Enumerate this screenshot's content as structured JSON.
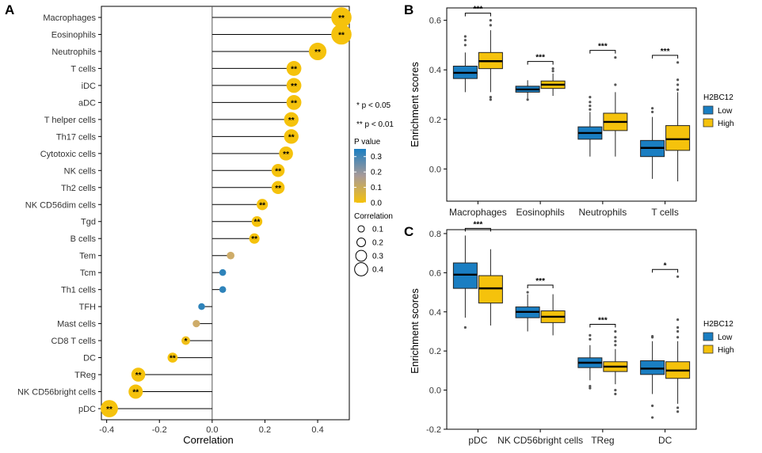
{
  "panels": {
    "a": "A",
    "b": "B",
    "c": "C"
  },
  "chart_data": [
    {
      "panel": "A",
      "type": "lollipop",
      "xlabel": "Correlation",
      "xlim": [
        -0.42,
        0.52
      ],
      "xticks": [
        "-0.4",
        "-0.2",
        "0.0",
        "0.2",
        "0.4"
      ],
      "xtick_values": [
        -0.4,
        -0.2,
        0.0,
        0.2,
        0.4
      ],
      "colors": {
        "low_p": "#F5C20C",
        "mid_p": "#C8A878",
        "high_p": "#1A7EC2"
      },
      "categories": [
        "Macrophages",
        "Eosinophils",
        "Neutrophils",
        "T cells",
        "iDC",
        "aDC",
        "T helper cells",
        "Th17 cells",
        "Cytotoxic cells",
        "NK cells",
        "Th2 cells",
        "NK CD56dim cells",
        "Tgd",
        "B cells",
        "Tem",
        "Tcm",
        "Th1 cells",
        "TFH",
        "Mast cells",
        "CD8 T cells",
        "DC",
        "TReg",
        "NK CD56bright cells",
        "pDC"
      ],
      "values": [
        0.49,
        0.49,
        0.4,
        0.31,
        0.31,
        0.31,
        0.3,
        0.3,
        0.28,
        0.25,
        0.25,
        0.19,
        0.17,
        0.16,
        0.07,
        0.04,
        0.04,
        -0.04,
        -0.06,
        -0.1,
        -0.15,
        -0.28,
        -0.29,
        -0.39
      ],
      "pvalues": [
        0.0,
        0.0,
        0.0,
        0.0,
        0.0,
        0.0,
        0.0,
        0.0,
        0.0,
        0.0,
        0.0,
        0.0,
        0.0,
        0.0,
        0.15,
        0.33,
        0.33,
        0.33,
        0.15,
        0.02,
        0.0,
        0.0,
        0.0,
        0.0
      ],
      "significance": [
        "**",
        "**",
        "**",
        "**",
        "**",
        "**",
        "**",
        "**",
        "**",
        "**",
        "**",
        "**",
        "**",
        "**",
        "",
        "",
        "",
        "",
        "",
        "*",
        "**",
        "**",
        "**",
        "**"
      ],
      "legend": {
        "sig_notes": [
          "* p < 0.05",
          "** p < 0.01"
        ],
        "pvalue_title": "P value",
        "pvalue_ticks": [
          "0.3",
          "0.2",
          "0.1",
          "0.0"
        ],
        "pvalue_tick_values": [
          0.3,
          0.2,
          0.1,
          0.0
        ],
        "pvalue_range": [
          0.0,
          0.35
        ],
        "correlation_title": "Correlation",
        "correlation_ticks": [
          "0.1",
          "0.2",
          "0.3",
          "0.4"
        ],
        "correlation_tick_values": [
          0.1,
          0.2,
          0.3,
          0.4
        ]
      }
    },
    {
      "panel": "B",
      "type": "boxplot",
      "ylabel": "Enrichment scores",
      "ylim": [
        -0.13,
        0.65
      ],
      "yticks": [
        "0.0",
        "0.2",
        "0.4",
        "0.6"
      ],
      "ytick_values": [
        0.0,
        0.2,
        0.4,
        0.6
      ],
      "categories": [
        "Macrophages",
        "Eosinophils",
        "Neutrophils",
        "T cells"
      ],
      "significance": [
        "***",
        "***",
        "***",
        "***"
      ],
      "legend_title": "H2BC12",
      "series": [
        {
          "name": "Low",
          "color": "#1A7EC2",
          "boxes": [
            {
              "whislo": 0.31,
              "q1": 0.365,
              "med": 0.388,
              "q3": 0.415,
              "whishi": 0.47,
              "outliers": [
                0.5,
                0.52,
                0.535
              ]
            },
            {
              "whislo": 0.285,
              "q1": 0.31,
              "med": 0.321,
              "q3": 0.334,
              "whishi": 0.358,
              "outliers": [
                0.28
              ]
            },
            {
              "whislo": 0.05,
              "q1": 0.12,
              "med": 0.145,
              "q3": 0.17,
              "whishi": 0.23,
              "outliers": [
                0.24,
                0.255,
                0.27,
                0.29
              ]
            },
            {
              "whislo": -0.04,
              "q1": 0.05,
              "med": 0.085,
              "q3": 0.115,
              "whishi": 0.21,
              "outliers": [
                0.23,
                0.245
              ]
            }
          ]
        },
        {
          "name": "High",
          "color": "#F5C20C",
          "boxes": [
            {
              "whislo": 0.31,
              "q1": 0.405,
              "med": 0.435,
              "q3": 0.47,
              "whishi": 0.56,
              "outliers": [
                0.58,
                0.6,
                0.29,
                0.28
              ]
            },
            {
              "whislo": 0.295,
              "q1": 0.325,
              "med": 0.34,
              "q3": 0.355,
              "whishi": 0.385,
              "outliers": [
                0.395,
                0.405
              ]
            },
            {
              "whislo": 0.05,
              "q1": 0.155,
              "med": 0.19,
              "q3": 0.225,
              "whishi": 0.31,
              "outliers": [
                0.34,
                0.45
              ]
            },
            {
              "whislo": -0.05,
              "q1": 0.075,
              "med": 0.12,
              "q3": 0.175,
              "whishi": 0.31,
              "outliers": [
                0.32,
                0.34,
                0.36,
                0.43
              ]
            }
          ]
        }
      ]
    },
    {
      "panel": "C",
      "type": "boxplot",
      "ylabel": "Enrichment scores",
      "ylim": [
        -0.2,
        0.82
      ],
      "yticks": [
        "-0.2",
        "0.0",
        "0.2",
        "0.4",
        "0.6",
        "0.8"
      ],
      "ytick_values": [
        -0.2,
        0.0,
        0.2,
        0.4,
        0.6,
        0.8
      ],
      "categories": [
        "pDC",
        "NK CD56bright cells",
        "TReg",
        "DC"
      ],
      "significance": [
        "***",
        "***",
        "***",
        "*"
      ],
      "legend_title": "H2BC12",
      "series": [
        {
          "name": "Low",
          "color": "#1A7EC2",
          "boxes": [
            {
              "whislo": 0.37,
              "q1": 0.52,
              "med": 0.59,
              "q3": 0.65,
              "whishi": 0.79,
              "outliers": [
                0.32
              ]
            },
            {
              "whislo": 0.3,
              "q1": 0.37,
              "med": 0.4,
              "q3": 0.425,
              "whishi": 0.49,
              "outliers": [
                0.5
              ]
            },
            {
              "whislo": 0.05,
              "q1": 0.115,
              "med": 0.14,
              "q3": 0.165,
              "whishi": 0.23,
              "outliers": [
                0.26,
                0.28,
                0.02,
                0.01
              ]
            },
            {
              "whislo": -0.02,
              "q1": 0.08,
              "med": 0.11,
              "q3": 0.15,
              "whishi": 0.25,
              "outliers": [
                0.27,
                0.275,
                -0.14,
                -0.08
              ]
            }
          ]
        },
        {
          "name": "High",
          "color": "#F5C20C",
          "boxes": [
            {
              "whislo": 0.33,
              "q1": 0.445,
              "med": 0.52,
              "q3": 0.585,
              "whishi": 0.72,
              "outliers": []
            },
            {
              "whislo": 0.28,
              "q1": 0.345,
              "med": 0.375,
              "q3": 0.405,
              "whishi": 0.49,
              "outliers": []
            },
            {
              "whislo": 0.03,
              "q1": 0.095,
              "med": 0.12,
              "q3": 0.145,
              "whishi": 0.21,
              "outliers": [
                0.23,
                0.25,
                0.27,
                0.3,
                0.0,
                -0.02
              ]
            },
            {
              "whislo": -0.07,
              "q1": 0.06,
              "med": 0.1,
              "q3": 0.145,
              "whishi": 0.25,
              "outliers": [
                0.27,
                0.3,
                0.32,
                0.36,
                0.58,
                -0.09,
                -0.11
              ]
            }
          ]
        }
      ]
    }
  ]
}
